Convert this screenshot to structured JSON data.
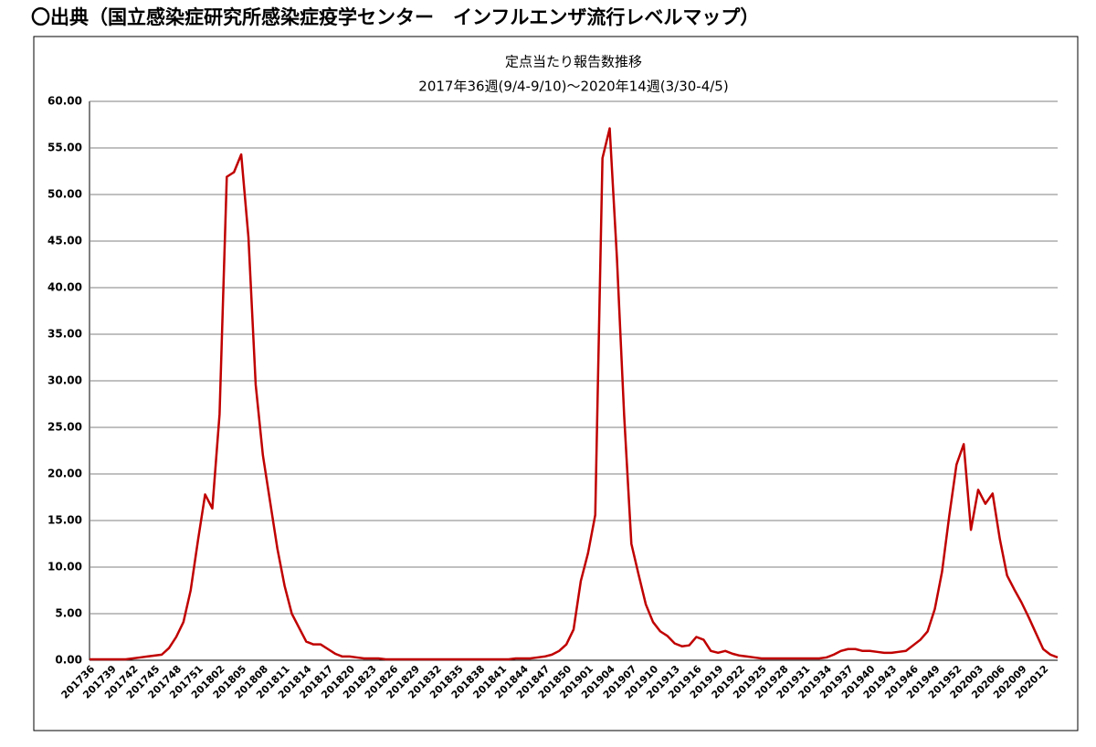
{
  "header": {
    "title": "〇出典（国立感染症研究所感染症疫学センター　インフルエンザ流行レベルマップ）"
  },
  "chart_data": {
    "type": "line",
    "title": "定点当たり報告数推移",
    "subtitle": "2017年36週(9/4-9/10)～2020年14週(3/30-4/5)",
    "color": "#c00000",
    "grid": true,
    "ylim": [
      0,
      60
    ],
    "yticks": [
      {
        "value": 0,
        "label": "0.00"
      },
      {
        "value": 5,
        "label": "5.00"
      },
      {
        "value": 10,
        "label": "10.00"
      },
      {
        "value": 15,
        "label": "15.00"
      },
      {
        "value": 20,
        "label": "20.00"
      },
      {
        "value": 25,
        "label": "25.00"
      },
      {
        "value": 30,
        "label": "30.00"
      },
      {
        "value": 35,
        "label": "35.00"
      },
      {
        "value": 40,
        "label": "40.00"
      },
      {
        "value": 45,
        "label": "45.00"
      },
      {
        "value": 50,
        "label": "50.00"
      },
      {
        "value": 55,
        "label": "55.00"
      },
      {
        "value": 60,
        "label": "60.00"
      }
    ],
    "categories": [
      "201736",
      null,
      null,
      "201739",
      null,
      null,
      "201742",
      null,
      null,
      "201745",
      null,
      null,
      "201748",
      null,
      null,
      "201751",
      null,
      null,
      "201802",
      null,
      null,
      "201805",
      null,
      null,
      "201808",
      null,
      null,
      "201811",
      null,
      null,
      "201814",
      null,
      null,
      "201817",
      null,
      null,
      "201820",
      null,
      null,
      "201823",
      null,
      null,
      "201826",
      null,
      null,
      "201829",
      null,
      null,
      "201832",
      null,
      null,
      "201835",
      null,
      null,
      "201838",
      null,
      null,
      "201841",
      null,
      null,
      "201844",
      null,
      null,
      "201847",
      null,
      null,
      "201850",
      null,
      null,
      "201901",
      null,
      null,
      "201904",
      null,
      null,
      "201907",
      null,
      null,
      "201910",
      null,
      null,
      "201913",
      null,
      null,
      "201916",
      null,
      null,
      "201919",
      null,
      null,
      "201922",
      null,
      null,
      "201925",
      null,
      null,
      "201928",
      null,
      null,
      "201931",
      null,
      null,
      "201934",
      null,
      null,
      "201937",
      null,
      null,
      "201940",
      null,
      null,
      "201943",
      null,
      null,
      "201946",
      null,
      null,
      "201949",
      null,
      null,
      "201952",
      null,
      null,
      "202003",
      null,
      null,
      "202006",
      null,
      null,
      "202009",
      null,
      null,
      "202012",
      null,
      null
    ],
    "values": [
      0.1,
      0.1,
      0.1,
      0.1,
      0.1,
      0.1,
      0.2,
      0.3,
      0.4,
      0.5,
      0.6,
      1.3,
      2.5,
      4.1,
      7.5,
      12.8,
      17.8,
      16.3,
      26.4,
      51.9,
      52.4,
      54.3,
      45.4,
      29.6,
      22.0,
      17.0,
      12.0,
      8.0,
      5.0,
      3.5,
      2.0,
      1.7,
      1.7,
      1.2,
      0.7,
      0.4,
      0.4,
      0.3,
      0.2,
      0.2,
      0.2,
      0.1,
      0.1,
      0.1,
      0.1,
      0.1,
      0.1,
      0.1,
      0.1,
      0.1,
      0.1,
      0.1,
      0.1,
      0.1,
      0.1,
      0.1,
      0.1,
      0.1,
      0.1,
      0.2,
      0.2,
      0.2,
      0.3,
      0.4,
      0.6,
      1.0,
      1.7,
      3.3,
      8.5,
      11.5,
      15.6,
      53.9,
      57.1,
      43.2,
      26.3,
      12.5,
      9.2,
      6.0,
      4.1,
      3.1,
      2.6,
      1.8,
      1.5,
      1.6,
      2.5,
      2.2,
      1.0,
      0.8,
      1.0,
      0.7,
      0.5,
      0.4,
      0.3,
      0.2,
      0.2,
      0.2,
      0.2,
      0.2,
      0.2,
      0.2,
      0.2,
      0.2,
      0.3,
      0.6,
      1.0,
      1.2,
      1.2,
      1.0,
      1.0,
      0.9,
      0.8,
      0.8,
      0.9,
      1.0,
      1.6,
      2.2,
      3.1,
      5.5,
      9.5,
      15.5,
      21.0,
      23.2,
      14.0,
      18.3,
      16.8,
      17.9,
      13.0,
      9.1,
      7.6,
      6.2,
      4.6,
      2.9,
      1.2,
      0.6,
      0.3
    ]
  }
}
